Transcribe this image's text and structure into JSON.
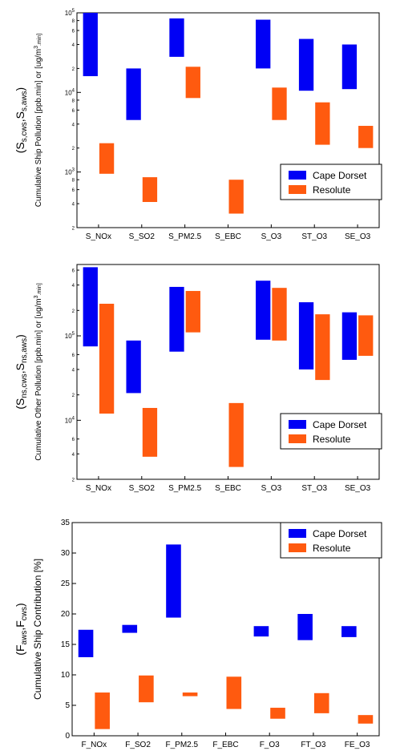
{
  "colors": {
    "cape_dorset": "#0000f5",
    "resolute": "#ff5a0f"
  },
  "chart_data": [
    {
      "type": "bar",
      "scale": "log",
      "ylim": [
        200,
        100000
      ],
      "ylabel_symbol": "(S",
      "ylabel_symbol_parts": [
        "(S",
        "s,cws",
        ",S",
        "s,aws",
        ")"
      ],
      "ylabel_parts": [
        "Cumulative Ship Pollution [ppb.min] or [ug/m",
        "3",
        ".min]"
      ],
      "major_ticks": [
        {
          "v": 1000,
          "m": "10",
          "e": "3"
        },
        {
          "v": 10000,
          "m": "10",
          "e": "4"
        },
        {
          "v": 100000,
          "m": "10",
          "e": "5"
        }
      ],
      "minor_ticks": [
        {
          "v": 200,
          "l": "2"
        },
        {
          "v": 400,
          "l": "4"
        },
        {
          "v": 600,
          "l": "6"
        },
        {
          "v": 800,
          "l": "8"
        },
        {
          "v": 2000,
          "l": "2"
        },
        {
          "v": 4000,
          "l": "4"
        },
        {
          "v": 6000,
          "l": "6"
        },
        {
          "v": 8000,
          "l": "8"
        },
        {
          "v": 20000,
          "l": "2"
        },
        {
          "v": 40000,
          "l": "4"
        },
        {
          "v": 60000,
          "l": "6"
        },
        {
          "v": 80000,
          "l": "8"
        }
      ],
      "categories": [
        "S_NOx",
        "S_SO2",
        "S_PM2.5",
        "S_EBC",
        "S_O3",
        "ST_O3",
        "SE_O3"
      ],
      "legend": {
        "position": "right",
        "entries": [
          "Cape Dorset",
          "Resolute"
        ]
      },
      "series": [
        {
          "name": "Cape Dorset",
          "ranges": [
            [
              16000,
              100000
            ],
            [
              4500,
              20000
            ],
            [
              28000,
              85000
            ],
            null,
            [
              20000,
              82000
            ],
            [
              10500,
              47000
            ],
            [
              11000,
              40000
            ]
          ]
        },
        {
          "name": "Resolute",
          "ranges": [
            [
              950,
              2300
            ],
            [
              420,
              860
            ],
            [
              8500,
              21000
            ],
            [
              300,
              800
            ],
            [
              4500,
              11500
            ],
            [
              2200,
              7500
            ],
            [
              2000,
              3800
            ]
          ]
        }
      ]
    },
    {
      "type": "bar",
      "scale": "log",
      "ylim": [
        2000,
        700000
      ],
      "ylabel_symbol_parts": [
        "(S",
        "ns,cws",
        ",S",
        "ns,aws",
        ")"
      ],
      "ylabel_parts": [
        "Cumulative Other Pollution [ppb.min] or [ug/m",
        "3",
        ".min]"
      ],
      "major_ticks": [
        {
          "v": 10000,
          "m": "10",
          "e": "4"
        },
        {
          "v": 100000,
          "m": "10",
          "e": "5"
        }
      ],
      "minor_ticks": [
        {
          "v": 2000,
          "l": "2"
        },
        {
          "v": 4000,
          "l": "4"
        },
        {
          "v": 6000,
          "l": "6"
        },
        {
          "v": 20000,
          "l": "2"
        },
        {
          "v": 40000,
          "l": "4"
        },
        {
          "v": 60000,
          "l": "6"
        },
        {
          "v": 200000,
          "l": "2"
        },
        {
          "v": 400000,
          "l": "4"
        },
        {
          "v": 600000,
          "l": "6"
        }
      ],
      "categories": [
        "S_NOx",
        "S_SO2",
        "S_PM2.5",
        "S_EBC",
        "S_O3",
        "ST_O3",
        "SE_O3"
      ],
      "legend": {
        "position": "right",
        "entries": [
          "Cape Dorset",
          "Resolute"
        ]
      },
      "series": [
        {
          "name": "Cape Dorset",
          "ranges": [
            [
              75000,
              650000
            ],
            [
              21000,
              88000
            ],
            [
              65000,
              380000
            ],
            null,
            [
              90000,
              450000
            ],
            [
              40000,
              250000
            ],
            [
              52000,
              190000
            ]
          ]
        },
        {
          "name": "Resolute",
          "ranges": [
            [
              12000,
              240000
            ],
            [
              3700,
              14000
            ],
            [
              110000,
              340000
            ],
            [
              2800,
              16000
            ],
            [
              88000,
              370000
            ],
            [
              30000,
              180000
            ],
            [
              58000,
              175000
            ]
          ]
        }
      ]
    },
    {
      "type": "bar",
      "scale": "linear",
      "ylim": [
        0,
        35
      ],
      "ylabel_symbol_parts": [
        "(F",
        "aws",
        ",F",
        "cws",
        ")"
      ],
      "ylabel_parts": [
        "Cumulative Ship Contribution [%]"
      ],
      "major_ticks": [
        {
          "v": 0,
          "l": "0"
        },
        {
          "v": 5,
          "l": "5"
        },
        {
          "v": 10,
          "l": "10"
        },
        {
          "v": 15,
          "l": "15"
        },
        {
          "v": 20,
          "l": "20"
        },
        {
          "v": 25,
          "l": "25"
        },
        {
          "v": 30,
          "l": "30"
        },
        {
          "v": 35,
          "l": "35"
        }
      ],
      "categories": [
        "F_NOx",
        "F_SO2",
        "F_PM2.5",
        "F_EBC",
        "F_O3",
        "FT_O3",
        "FE_O3"
      ],
      "legend": {
        "position": "top-right",
        "entries": [
          "Cape Dorset",
          "Resolute"
        ]
      },
      "series": [
        {
          "name": "Cape Dorset",
          "ranges": [
            [
              12.9,
              17.4
            ],
            [
              16.9,
              18.2
            ],
            [
              19.4,
              31.4
            ],
            null,
            [
              16.3,
              18.0
            ],
            [
              15.7,
              20.0
            ],
            [
              16.2,
              18.0
            ]
          ]
        },
        {
          "name": "Resolute",
          "ranges": [
            [
              1.1,
              7.1
            ],
            [
              5.5,
              9.9
            ],
            [
              6.5,
              7.1
            ],
            [
              4.4,
              9.7
            ],
            [
              2.8,
              4.6
            ],
            [
              3.7,
              7.0
            ],
            [
              2.0,
              3.4
            ]
          ]
        }
      ]
    }
  ]
}
